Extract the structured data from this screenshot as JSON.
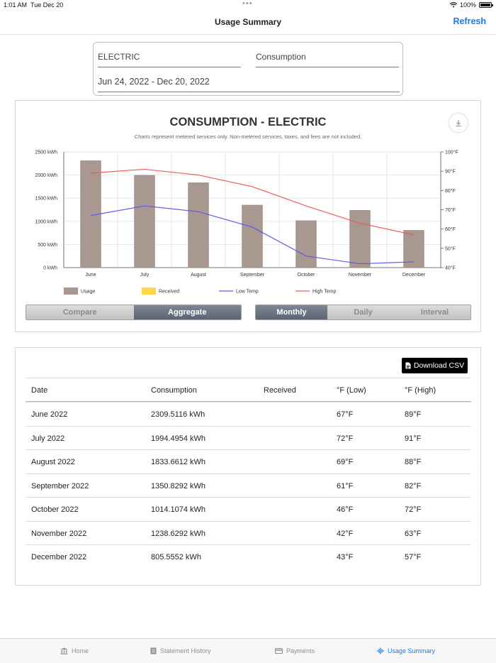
{
  "status": {
    "time": "1:01 AM",
    "date": "Tue Dec 20",
    "battery": "100%",
    "dots": "•••"
  },
  "nav": {
    "title": "Usage Summary",
    "refresh": "Refresh"
  },
  "filters": {
    "service": "ELECTRIC",
    "type": "Consumption",
    "range": "Jun 24, 2022 - Dec 20, 2022"
  },
  "chart": {
    "title": "CONSUMPTION - ELECTRIC",
    "subtitle": "Charts represent metered services only. Non-metered services, taxes, and fees are not included."
  },
  "chart_data": {
    "type": "bar",
    "title": "CONSUMPTION - ELECTRIC",
    "categories": [
      "June",
      "July",
      "August",
      "September",
      "October",
      "November",
      "December"
    ],
    "series": [
      {
        "name": "Usage",
        "type": "bar",
        "axis": "left",
        "color": "#a89890",
        "values": [
          2309.5116,
          1994.4954,
          1833.6612,
          1350.8292,
          1014.1074,
          1238.6292,
          805.5552
        ]
      },
      {
        "name": "Received",
        "type": "bar",
        "axis": "left",
        "color": "#ffd84a",
        "values": [
          0,
          0,
          0,
          0,
          0,
          0,
          0
        ]
      },
      {
        "name": "Low Temp",
        "type": "line",
        "axis": "right",
        "color": "#5b5bef",
        "values": [
          67,
          72,
          69,
          61,
          46,
          42,
          43
        ]
      },
      {
        "name": "High Temp",
        "type": "line",
        "axis": "right",
        "color": "#ef5b5b",
        "values": [
          89,
          91,
          88,
          82,
          72,
          63,
          57
        ]
      }
    ],
    "ylim_left": [
      0,
      2500
    ],
    "ylim_right": [
      40,
      100
    ],
    "yticks_left": [
      "0 kWh",
      "500 kWh",
      "1000 kWh",
      "1500 kWh",
      "2000 kWh",
      "2500 kWh"
    ],
    "yticks_right": [
      "40°F",
      "50°F",
      "60°F",
      "70°F",
      "80°F",
      "90°F",
      "100°F"
    ],
    "grid": true,
    "legend": "bottom"
  },
  "toggles": {
    "mode": [
      {
        "label": "Compare",
        "active": false
      },
      {
        "label": "Aggregate",
        "active": true
      }
    ],
    "period": [
      {
        "label": "Monthly",
        "active": true
      },
      {
        "label": "Daily",
        "active": false
      },
      {
        "label": "Interval",
        "active": false
      }
    ]
  },
  "table": {
    "download_label": "Download CSV",
    "headers": [
      "Date",
      "Consumption",
      "Received",
      "°F (Low)",
      "°F (High)"
    ],
    "rows": [
      [
        "June 2022",
        "2309.5116 kWh",
        "",
        "67°F",
        "89°F"
      ],
      [
        "July 2022",
        "1994.4954 kWh",
        "",
        "72°F",
        "91°F"
      ],
      [
        "August 2022",
        "1833.6612 kWh",
        "",
        "69°F",
        "88°F"
      ],
      [
        "September 2022",
        "1350.8292 kWh",
        "",
        "61°F",
        "82°F"
      ],
      [
        "October 2022",
        "1014.1074 kWh",
        "",
        "46°F",
        "72°F"
      ],
      [
        "November 2022",
        "1238.6292 kWh",
        "",
        "42°F",
        "63°F"
      ],
      [
        "December 2022",
        "805.5552 kWh",
        "",
        "43°F",
        "57°F"
      ]
    ]
  },
  "tabs": [
    {
      "label": "Home",
      "icon": "bank-icon",
      "active": false
    },
    {
      "label": "Statement History",
      "icon": "statement-icon",
      "active": false
    },
    {
      "label": "Payments",
      "icon": "card-icon",
      "active": false
    },
    {
      "label": "Usage Summary",
      "icon": "waveform-icon",
      "active": true
    }
  ]
}
